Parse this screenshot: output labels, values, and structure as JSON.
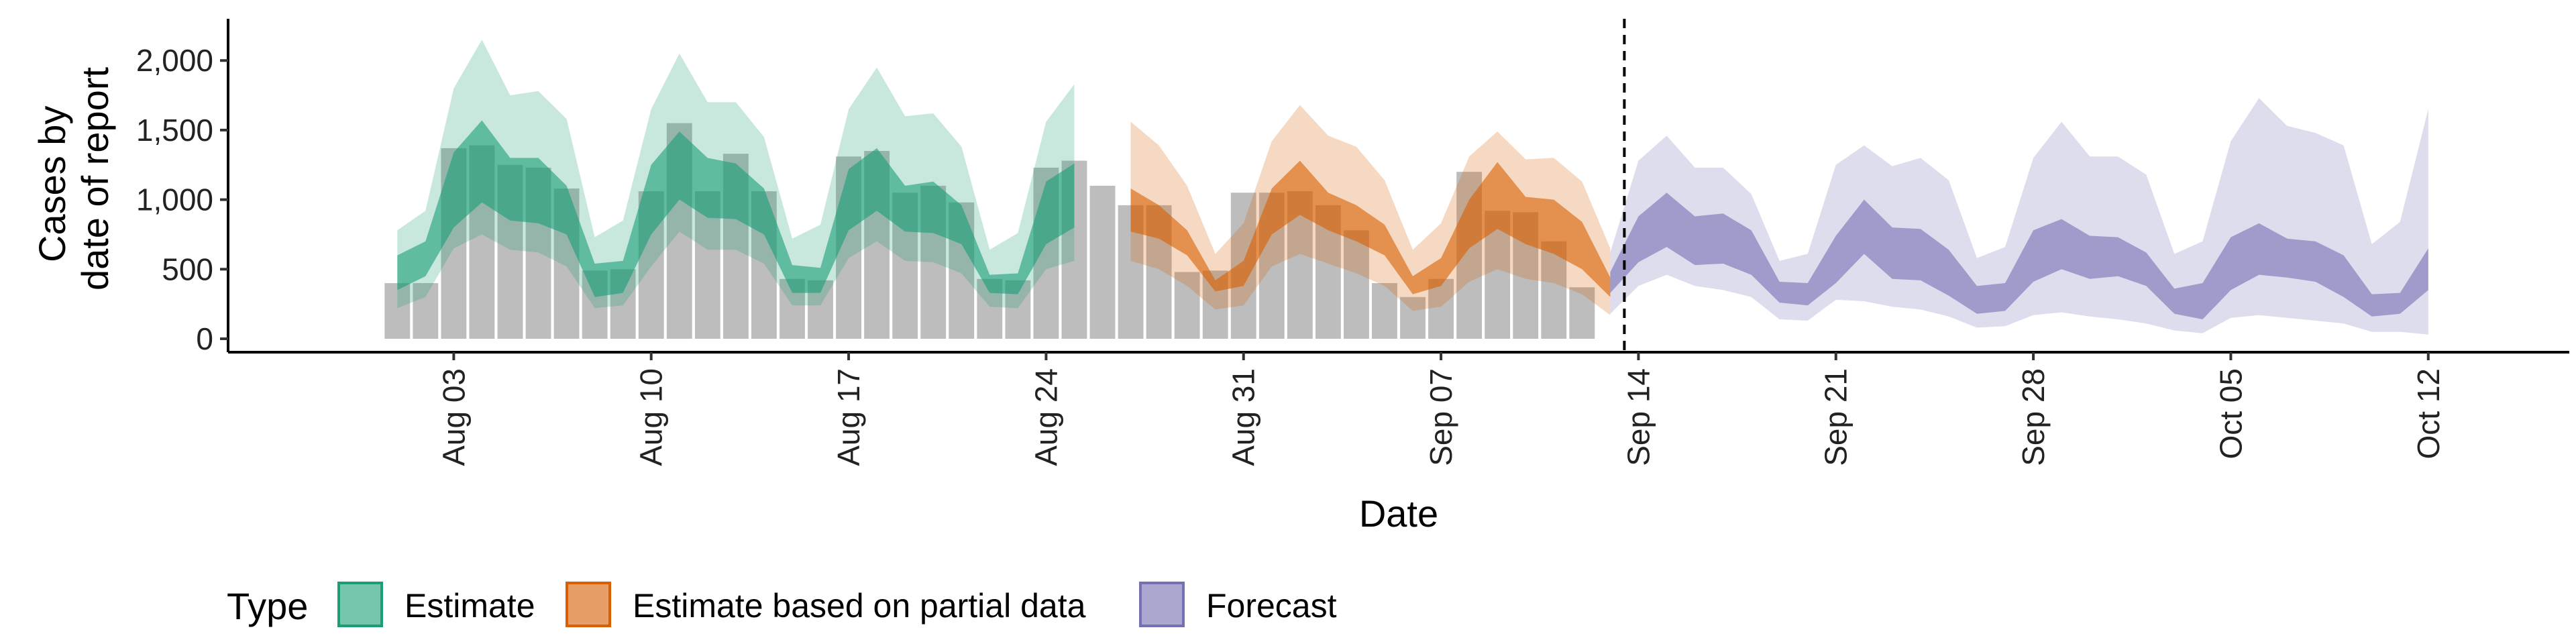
{
  "chart_data": {
    "type": "area",
    "xlabel": "Date",
    "ylabel_lines": [
      "Cases by",
      "date of report"
    ],
    "xlim": [
      "2021-07-26",
      "2021-10-17"
    ],
    "ylim": [
      0,
      2300
    ],
    "y_ticks": [
      0,
      500,
      1000,
      1500,
      2000
    ],
    "y_tick_labels": [
      "0",
      "500",
      "1,000",
      "1,500",
      "2,000"
    ],
    "x_ticks": [
      "2021-08-03",
      "2021-08-10",
      "2021-08-17",
      "2021-08-24",
      "2021-08-31",
      "2021-09-07",
      "2021-09-14",
      "2021-09-21",
      "2021-09-28",
      "2021-10-05",
      "2021-10-12"
    ],
    "x_tick_labels": [
      "Aug 03",
      "Aug 10",
      "Aug 17",
      "Aug 24",
      "Aug 31",
      "Sep 07",
      "Sep 14",
      "Sep 21",
      "Sep 28",
      "Oct 05",
      "Oct 12"
    ],
    "forecast_start": "2021-09-13",
    "grid": false,
    "legend_position": "bottom",
    "legend": {
      "title": "Type",
      "items": [
        {
          "label": "Estimate",
          "color": "#1b9e77"
        },
        {
          "label": "Estimate based on partial data",
          "color": "#d95f02"
        },
        {
          "label": "Forecast",
          "color": "#7570b3"
        }
      ]
    },
    "reported_cases": {
      "color": "#bdbdbd",
      "start": "2021-08-01",
      "values": [
        400,
        400,
        1370,
        1390,
        1250,
        1230,
        1080,
        490,
        500,
        1060,
        1550,
        1060,
        1330,
        1060,
        430,
        420,
        1310,
        1350,
        1050,
        1100,
        980,
        430,
        420,
        1230,
        1280,
        1100,
        960,
        960,
        480,
        490,
        1050,
        1050,
        1060,
        960,
        780,
        400,
        300,
        430,
        1200,
        920,
        910,
        700,
        370
      ]
    },
    "series": [
      {
        "name": "Estimate",
        "color": "#1b9e77",
        "start": "2021-08-01",
        "inner_low": [
          350,
          450,
          800,
          980,
          850,
          830,
          750,
          300,
          330,
          750,
          1000,
          870,
          860,
          750,
          330,
          330,
          780,
          920,
          770,
          760,
          680,
          330,
          320,
          680,
          800
        ],
        "inner_high": [
          600,
          700,
          1340,
          1570,
          1300,
          1300,
          1100,
          540,
          560,
          1250,
          1490,
          1300,
          1260,
          1080,
          530,
          510,
          1220,
          1370,
          1100,
          1130,
          960,
          460,
          470,
          1130,
          1260
        ],
        "outer_low": [
          220,
          300,
          650,
          750,
          640,
          620,
          520,
          220,
          240,
          520,
          770,
          640,
          640,
          540,
          240,
          240,
          580,
          700,
          560,
          550,
          470,
          230,
          220,
          500,
          560
        ],
        "outer_high": [
          780,
          920,
          1800,
          2150,
          1750,
          1780,
          1580,
          730,
          850,
          1650,
          2050,
          1700,
          1700,
          1450,
          720,
          820,
          1650,
          1950,
          1600,
          1620,
          1380,
          640,
          760,
          1560,
          1830
        ]
      },
      {
        "name": "Estimate based on partial data",
        "color": "#d95f02",
        "start": "2021-08-27",
        "inner_low": [
          770,
          720,
          600,
          340,
          380,
          750,
          890,
          780,
          700,
          600,
          320,
          380,
          650,
          790,
          680,
          610,
          500,
          300
        ],
        "inner_high": [
          1080,
          960,
          780,
          420,
          560,
          1080,
          1280,
          1050,
          960,
          820,
          450,
          580,
          1000,
          1270,
          1020,
          1000,
          840,
          440
        ],
        "outer_low": [
          560,
          500,
          380,
          210,
          240,
          520,
          610,
          540,
          470,
          380,
          200,
          230,
          410,
          500,
          430,
          400,
          320,
          170
        ],
        "outer_high": [
          1560,
          1390,
          1100,
          610,
          830,
          1420,
          1680,
          1460,
          1380,
          1140,
          640,
          830,
          1310,
          1490,
          1290,
          1300,
          1130,
          650
        ]
      },
      {
        "name": "Forecast",
        "color": "#7570b3",
        "start": "2021-09-13",
        "inner_low": [
          330,
          550,
          660,
          530,
          540,
          460,
          260,
          240,
          400,
          610,
          430,
          420,
          310,
          180,
          200,
          410,
          500,
          430,
          450,
          380,
          180,
          140,
          350,
          460,
          440,
          410,
          300,
          160,
          180,
          350
        ],
        "inner_high": [
          480,
          880,
          1050,
          880,
          900,
          780,
          410,
          400,
          740,
          1000,
          800,
          790,
          640,
          380,
          400,
          780,
          860,
          740,
          730,
          620,
          360,
          400,
          730,
          830,
          720,
          700,
          600,
          320,
          330,
          650
        ],
        "outer_low": [
          180,
          380,
          460,
          380,
          350,
          300,
          140,
          130,
          280,
          270,
          230,
          210,
          160,
          80,
          90,
          170,
          190,
          160,
          140,
          110,
          60,
          40,
          150,
          170,
          150,
          130,
          110,
          50,
          50,
          30
        ],
        "outer_high": [
          620,
          1280,
          1460,
          1230,
          1230,
          1040,
          560,
          610,
          1250,
          1390,
          1240,
          1300,
          1140,
          580,
          660,
          1300,
          1560,
          1310,
          1310,
          1180,
          610,
          700,
          1420,
          1730,
          1530,
          1480,
          1390,
          680,
          840,
          1650
        ]
      }
    ]
  }
}
